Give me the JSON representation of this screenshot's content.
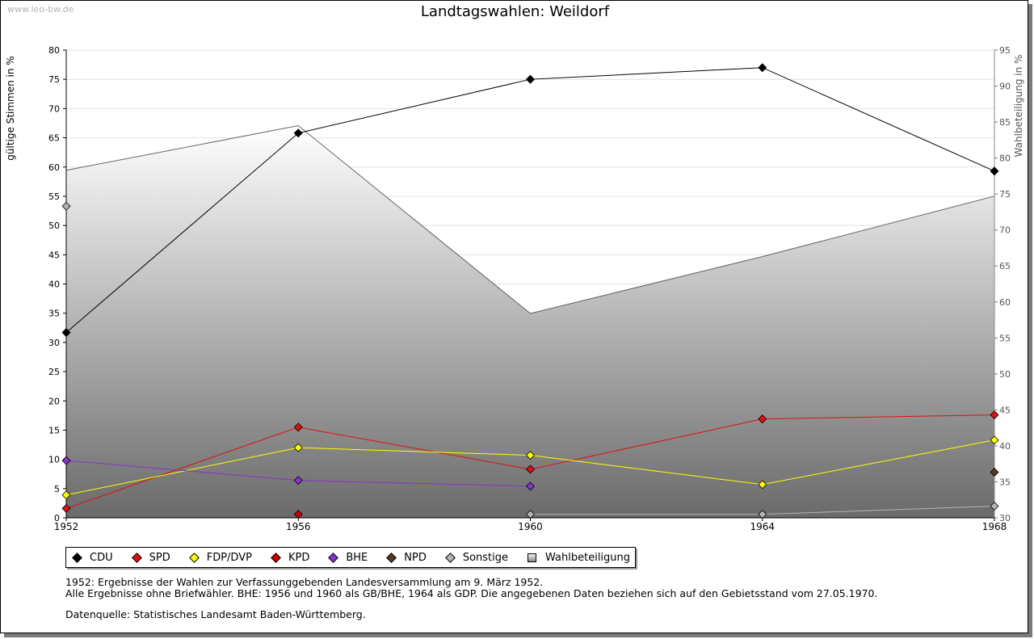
{
  "watermark": "www.leo-bw.de",
  "title": "Landtagswahlen: Weildorf",
  "chart_data": {
    "type": "line",
    "title": "Landtagswahlen: Weildorf",
    "x": [
      1952,
      1956,
      1960,
      1964,
      1968
    ],
    "x_tick_labels": [
      "1952",
      "1956",
      "1960",
      "1964",
      "1968"
    ],
    "ylabel_left": "gültige Stimmen in %",
    "ylabel_right": "Wahlbeteiligung in %",
    "ylim_left": [
      0,
      80
    ],
    "ylim_right": [
      30,
      95
    ],
    "yticks_left": [
      "0",
      "5",
      "10",
      "15",
      "20",
      "25",
      "30",
      "35",
      "40",
      "45",
      "50",
      "55",
      "60",
      "65",
      "70",
      "75",
      "80"
    ],
    "yticks_right": [
      "30",
      "35",
      "40",
      "45",
      "50",
      "55",
      "60",
      "65",
      "70",
      "75",
      "80",
      "85",
      "90",
      "95"
    ],
    "grid": true,
    "series": [
      {
        "name": "CDU",
        "color": "#000000",
        "values": [
          31.7,
          65.8,
          75.0,
          77.0,
          59.3
        ]
      },
      {
        "name": "SPD",
        "color": "#e01010",
        "values": [
          1.6,
          15.5,
          8.3,
          16.9,
          17.6
        ]
      },
      {
        "name": "FDP/DVP",
        "color": "#ffff00",
        "values": [
          3.9,
          12.0,
          10.7,
          5.7,
          13.3
        ]
      },
      {
        "name": "KPD",
        "color": "#cc0000",
        "values": [
          null,
          0.6,
          null,
          null,
          null
        ]
      },
      {
        "name": "BHE",
        "color": "#8833cc",
        "values": [
          9.8,
          6.4,
          5.4,
          null,
          null
        ]
      },
      {
        "name": "NPD",
        "color": "#5c3b1e",
        "values": [
          null,
          null,
          null,
          null,
          7.8
        ]
      },
      {
        "name": "Sonstige",
        "color": "#b4b4b4",
        "values": [
          53.3,
          null,
          0.6,
          0.6,
          2.0
        ]
      }
    ],
    "area_series": {
      "name": "Wahlbeteiligung",
      "axis": "right",
      "values": [
        78.3,
        84.5,
        58.4,
        66.3,
        74.7
      ]
    }
  },
  "legend": [
    {
      "label": "CDU",
      "color": "#000000",
      "kind": "marker"
    },
    {
      "label": "SPD",
      "color": "#e01010",
      "kind": "marker"
    },
    {
      "label": "FDP/DVP",
      "color": "#ffff00",
      "kind": "marker"
    },
    {
      "label": "KPD",
      "color": "#cc0000",
      "kind": "marker"
    },
    {
      "label": "BHE",
      "color": "#8833cc",
      "kind": "marker"
    },
    {
      "label": "NPD",
      "color": "#5c3b1e",
      "kind": "marker"
    },
    {
      "label": "Sonstige",
      "color": "#b4b4b4",
      "kind": "marker"
    },
    {
      "label": "Wahlbeteiligung",
      "color": "#aaaaaa",
      "kind": "box"
    }
  ],
  "notes": {
    "line1": "1952: Ergebnisse der Wahlen zur Verfassunggebenden Landesversammlung am 9. März 1952.",
    "line2": "Alle Ergebnisse ohne Briefwähler. BHE: 1956 und 1960 als GB/BHE, 1964 als GDP. Die angegebenen Daten beziehen sich auf den Gebietsstand vom 27.05.1970.",
    "line3": "Datenquelle: Statistisches Landesamt Baden-Württemberg."
  }
}
